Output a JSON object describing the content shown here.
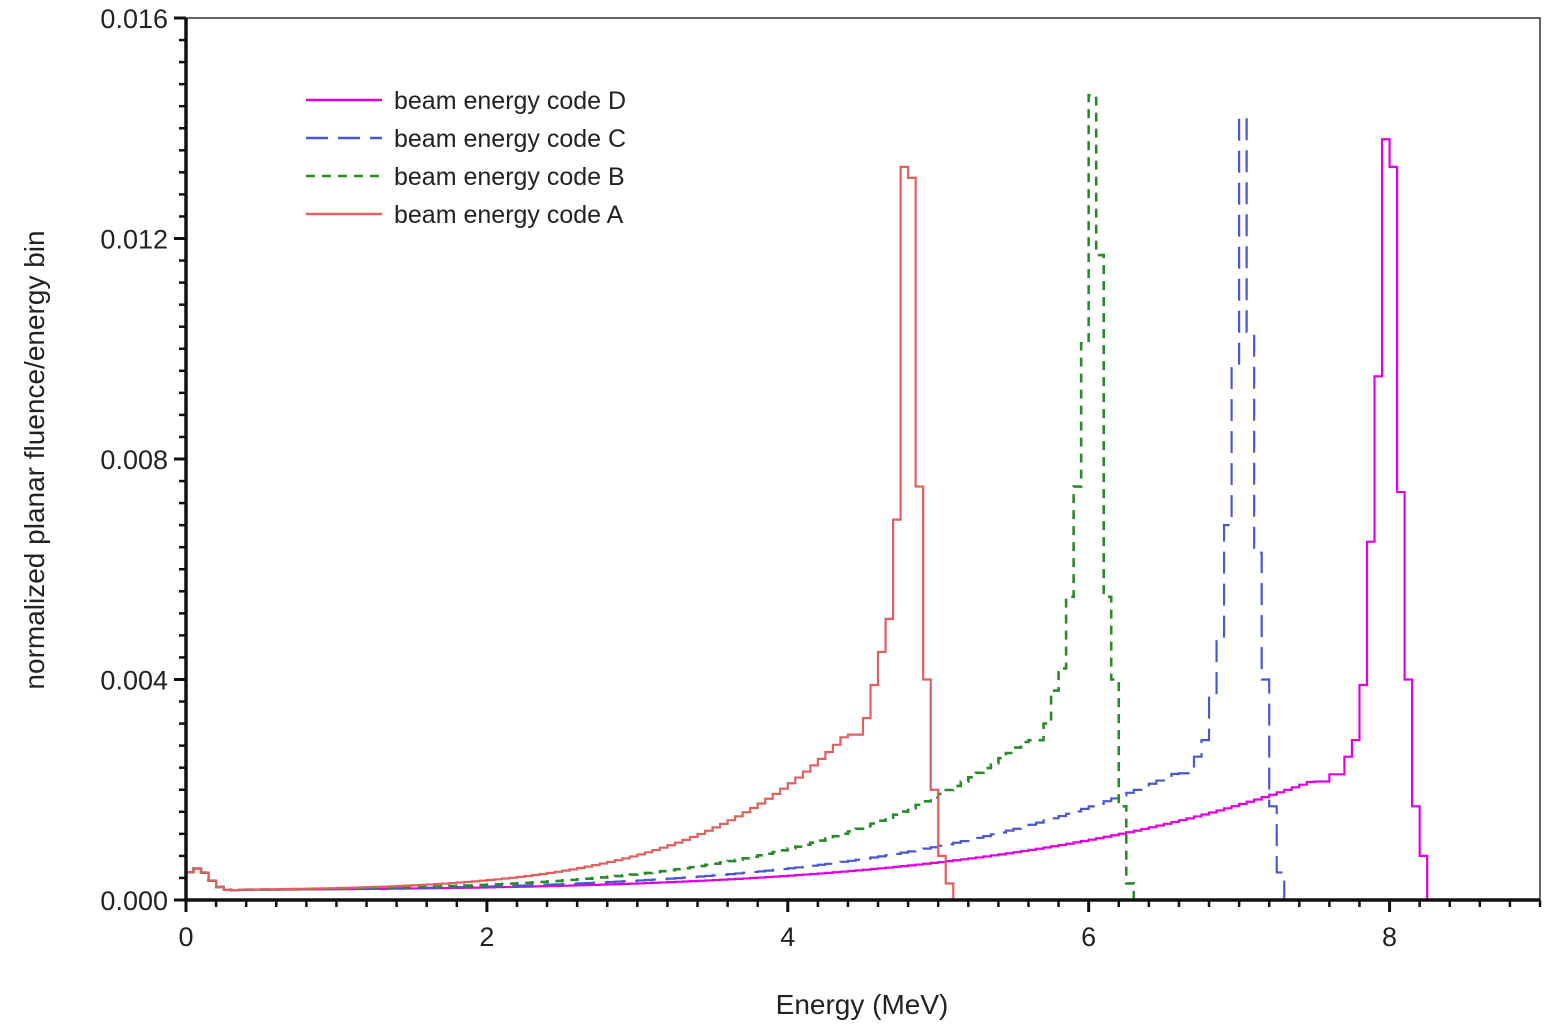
{
  "chart_data": {
    "type": "line",
    "title": "",
    "xlabel": "Energy (MeV)",
    "ylabel": "normalized planar fluence/energy bin",
    "xlim": [
      0,
      9
    ],
    "ylim": [
      0,
      0.016
    ],
    "x_ticks": [
      "0",
      "2",
      "4",
      "6",
      "8"
    ],
    "y_ticks": [
      "0.000",
      "0.004",
      "0.008",
      "0.012",
      "0.016"
    ],
    "grid": false,
    "legend_position": "top-left",
    "bin_width_mev": 0.05,
    "series": [
      {
        "name": "beam energy code D",
        "color": "#e000e0",
        "dash": "solid",
        "peak_energy": 8.0,
        "max_energy": 8.3,
        "peak_bins": [
          [
            7.5,
            0.00215
          ],
          [
            7.6,
            0.00228
          ],
          [
            7.7,
            0.0026
          ],
          [
            7.75,
            0.0029
          ],
          [
            7.8,
            0.0039
          ],
          [
            7.85,
            0.0065
          ],
          [
            7.9,
            0.0095
          ],
          [
            7.95,
            0.0138
          ],
          [
            8.0,
            0.0133
          ],
          [
            8.05,
            0.0074
          ],
          [
            8.1,
            0.004
          ],
          [
            8.15,
            0.0017
          ],
          [
            8.2,
            0.0008
          ],
          [
            8.25,
            0.0
          ],
          [
            8.3,
            0.0
          ]
        ]
      },
      {
        "name": "beam energy code C",
        "color": "#4a58d0",
        "dash": "long-dash",
        "peak_energy": 7.0,
        "max_energy": 7.3,
        "peak_bins": [
          [
            6.6,
            0.0023
          ],
          [
            6.7,
            0.0026
          ],
          [
            6.75,
            0.0029
          ],
          [
            6.8,
            0.0037
          ],
          [
            6.85,
            0.0047
          ],
          [
            6.9,
            0.0068
          ],
          [
            6.95,
            0.0097
          ],
          [
            7.0,
            0.0142
          ],
          [
            7.05,
            0.0103
          ],
          [
            7.1,
            0.0063
          ],
          [
            7.15,
            0.004
          ],
          [
            7.2,
            0.0017
          ],
          [
            7.25,
            0.0005
          ],
          [
            7.3,
            0.0
          ]
        ]
      },
      {
        "name": "beam energy code B",
        "color": "#2a8a2a",
        "dash": "short-dash",
        "peak_energy": 6.0,
        "max_energy": 6.3,
        "peak_bins": [
          [
            5.6,
            0.0029
          ],
          [
            5.7,
            0.0032
          ],
          [
            5.75,
            0.0038
          ],
          [
            5.8,
            0.0042
          ],
          [
            5.85,
            0.0055
          ],
          [
            5.9,
            0.0075
          ],
          [
            5.95,
            0.0101
          ],
          [
            6.0,
            0.0146
          ],
          [
            6.05,
            0.0117
          ],
          [
            6.1,
            0.0055
          ],
          [
            6.15,
            0.004
          ],
          [
            6.2,
            0.0017
          ],
          [
            6.25,
            0.0003
          ],
          [
            6.3,
            0.0
          ]
        ]
      },
      {
        "name": "beam energy code A",
        "color": "#e06060",
        "dash": "solid",
        "peak_energy": 4.8,
        "max_energy": 5.1,
        "peak_bins": [
          [
            4.4,
            0.003
          ],
          [
            4.5,
            0.0033
          ],
          [
            4.55,
            0.0039
          ],
          [
            4.6,
            0.0045
          ],
          [
            4.65,
            0.0051
          ],
          [
            4.7,
            0.0069
          ],
          [
            4.75,
            0.0133
          ],
          [
            4.8,
            0.0131
          ],
          [
            4.85,
            0.0075
          ],
          [
            4.9,
            0.004
          ],
          [
            4.95,
            0.002
          ],
          [
            5.0,
            0.0008
          ],
          [
            5.05,
            0.0003
          ],
          [
            5.1,
            0.0
          ]
        ]
      }
    ]
  }
}
